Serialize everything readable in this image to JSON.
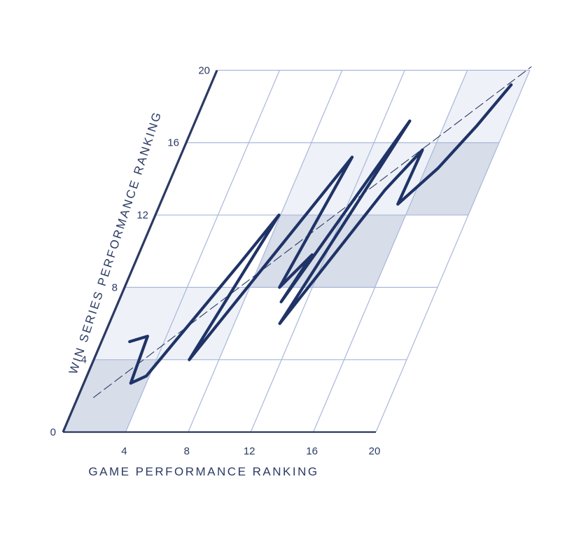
{
  "chart_data": {
    "type": "line",
    "xlabel": "GAME PERFORMANCE RANKING",
    "ylabel": "WIN SERIES PERFORMANCE RANKING",
    "xlim": [
      0,
      20
    ],
    "ylim": [
      0,
      20
    ],
    "x_ticks": [
      "4",
      "8",
      "12",
      "16",
      "20"
    ],
    "y_ticks": [
      "0",
      "4",
      "8",
      "12",
      "16",
      "20"
    ],
    "grid": true,
    "reference_line": {
      "style": "dashed",
      "from": [
        1,
        1.9
      ],
      "to": [
        20,
        20.2
      ]
    },
    "bands": [
      {
        "x": [
          0,
          4
        ],
        "y": [
          0,
          4
        ],
        "shade": "dark"
      },
      {
        "x": [
          0,
          8
        ],
        "y": [
          4,
          8
        ],
        "shade": "light"
      },
      {
        "x": [
          8,
          16
        ],
        "y": [
          8,
          12
        ],
        "shade": "dark"
      },
      {
        "x": [
          8,
          16
        ],
        "y": [
          12,
          16
        ],
        "shade": "light"
      },
      {
        "x": [
          16,
          20
        ],
        "y": [
          12,
          16
        ],
        "shade": "dark"
      },
      {
        "x": [
          16,
          20
        ],
        "y": [
          16,
          20
        ],
        "shade": "light"
      }
    ],
    "series": [
      {
        "points": [
          [
            1.8,
            5.0
          ],
          [
            2.8,
            5.3
          ],
          [
            3.0,
            2.7
          ],
          [
            3.8,
            3.1
          ],
          [
            6.7,
            9.3
          ],
          [
            7.9,
            12.0
          ],
          [
            6.1,
            4.0
          ],
          [
            11.0,
            15.2
          ],
          [
            9.9,
            8.0
          ],
          [
            11.1,
            9.8
          ],
          [
            10.4,
            7.2
          ],
          [
            13.7,
            17.2
          ],
          [
            10.9,
            6.0
          ],
          [
            14.0,
            13.4
          ],
          [
            15.3,
            15.6
          ],
          [
            15.2,
            12.6
          ],
          [
            16.8,
            14.6
          ],
          [
            18.1,
            16.9
          ],
          [
            19.2,
            19.2
          ]
        ]
      }
    ]
  }
}
